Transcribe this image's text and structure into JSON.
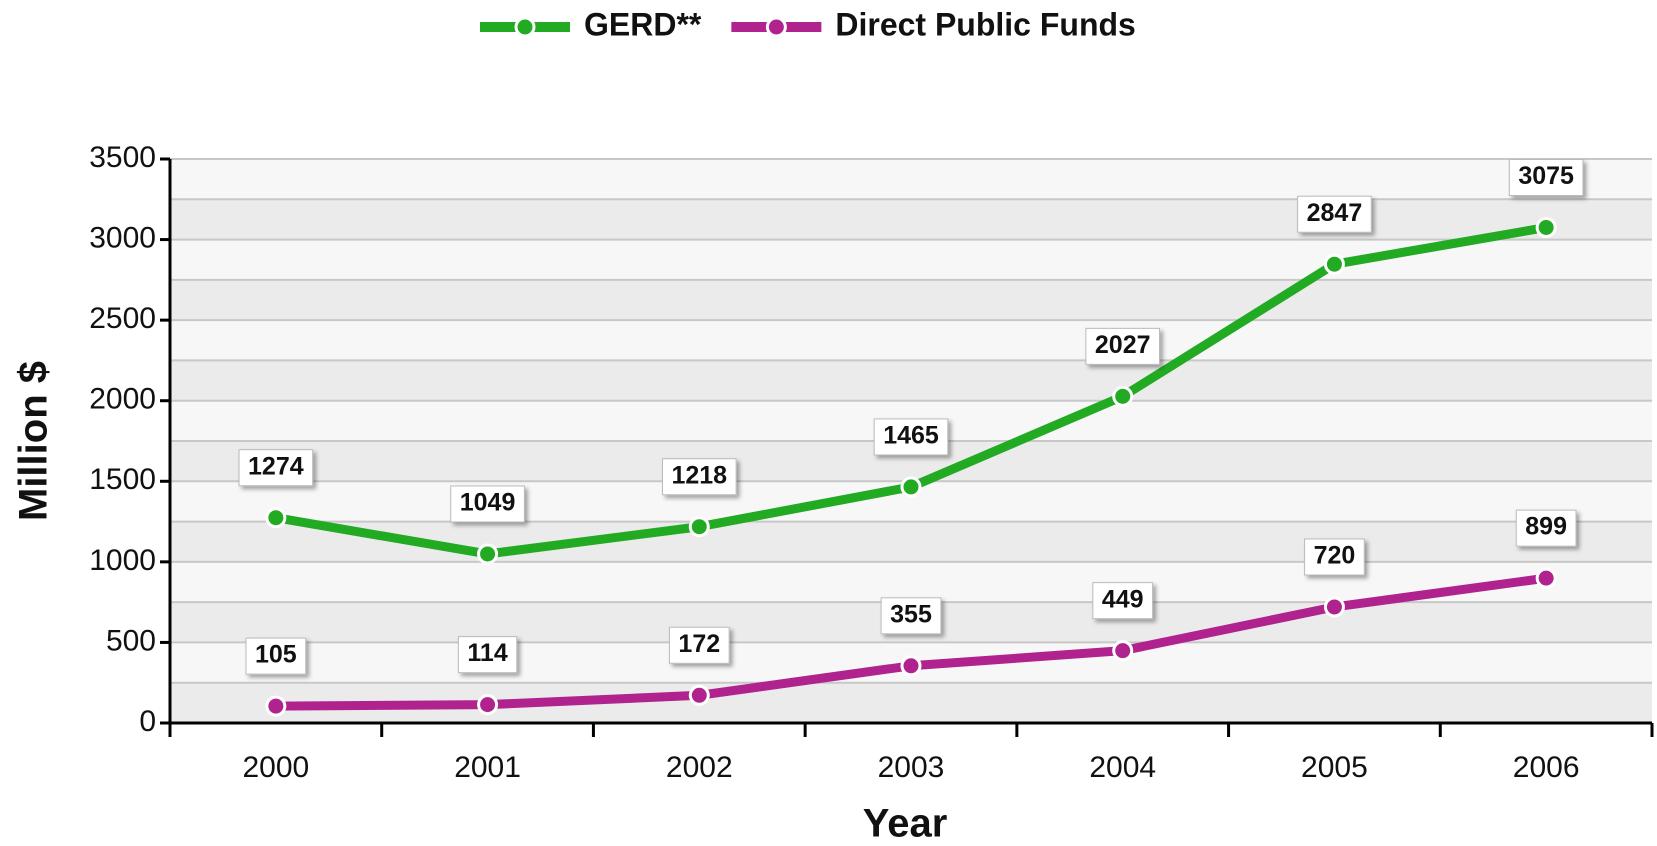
{
  "chart_data": {
    "type": "line",
    "xlabel": "Year",
    "ylabel": "Million $",
    "categories": [
      "2000",
      "2001",
      "2002",
      "2003",
      "2004",
      "2005",
      "2006"
    ],
    "series": [
      {
        "name": "GERD**",
        "color": "#22aa22",
        "values": [
          1274,
          1049,
          1218,
          1465,
          2027,
          2847,
          3075
        ]
      },
      {
        "name": "Direct Public Funds",
        "color": "#b0238f",
        "values": [
          105,
          114,
          172,
          355,
          449,
          720,
          899
        ]
      }
    ],
    "ylim": [
      0,
      3500
    ],
    "yticks": [
      0,
      500,
      1000,
      1500,
      2000,
      2500,
      3000,
      3500
    ],
    "grid": true,
    "legend": "top"
  }
}
